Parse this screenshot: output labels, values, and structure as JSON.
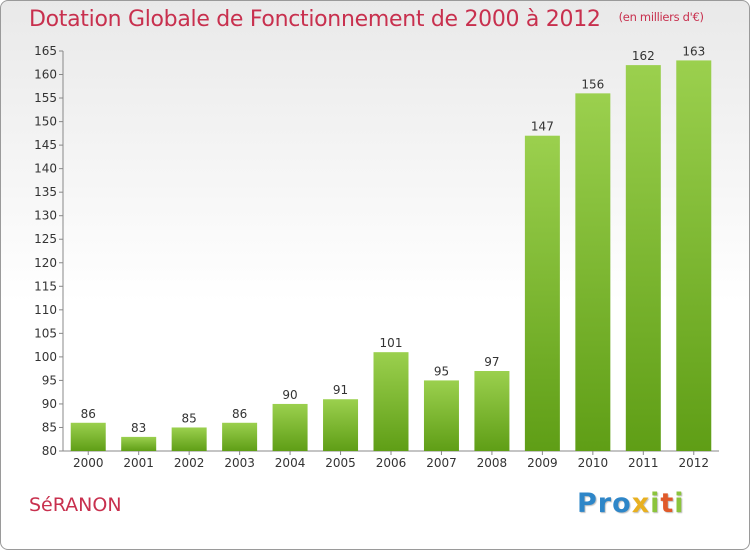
{
  "header": {
    "title": "Dotation Globale de Fonctionnement de 2000 à 2012",
    "unit": "(en milliers d'€)"
  },
  "footer": {
    "commune": "SéRANON",
    "logo_letters": [
      {
        "ch": "P",
        "color": "#2e86c8"
      },
      {
        "ch": "r",
        "color": "#2e86c8"
      },
      {
        "ch": "o",
        "color": "#2e86c8"
      },
      {
        "ch": "x",
        "color": "#e8b020"
      },
      {
        "ch": "i",
        "color": "#8cc43c"
      },
      {
        "ch": "t",
        "color": "#e05a2a"
      },
      {
        "ch": "i",
        "color": "#8cc43c"
      }
    ]
  },
  "colors": {
    "bar_top": "#9bd04e",
    "bar_bottom": "#5f9e16",
    "title": "#c8304e",
    "axis": "#888888"
  },
  "chart_data": {
    "type": "bar",
    "categories": [
      "2000",
      "2001",
      "2002",
      "2003",
      "2004",
      "2005",
      "2006",
      "2007",
      "2008",
      "2009",
      "2010",
      "2011",
      "2012"
    ],
    "values": [
      86,
      83,
      85,
      86,
      90,
      91,
      101,
      95,
      97,
      147,
      156,
      162,
      163
    ],
    "ylim": [
      80,
      165
    ],
    "yticks": [
      80,
      85,
      90,
      95,
      100,
      105,
      110,
      115,
      120,
      125,
      130,
      135,
      140,
      145,
      150,
      155,
      160,
      165
    ],
    "grid": false,
    "data_labels": true
  }
}
